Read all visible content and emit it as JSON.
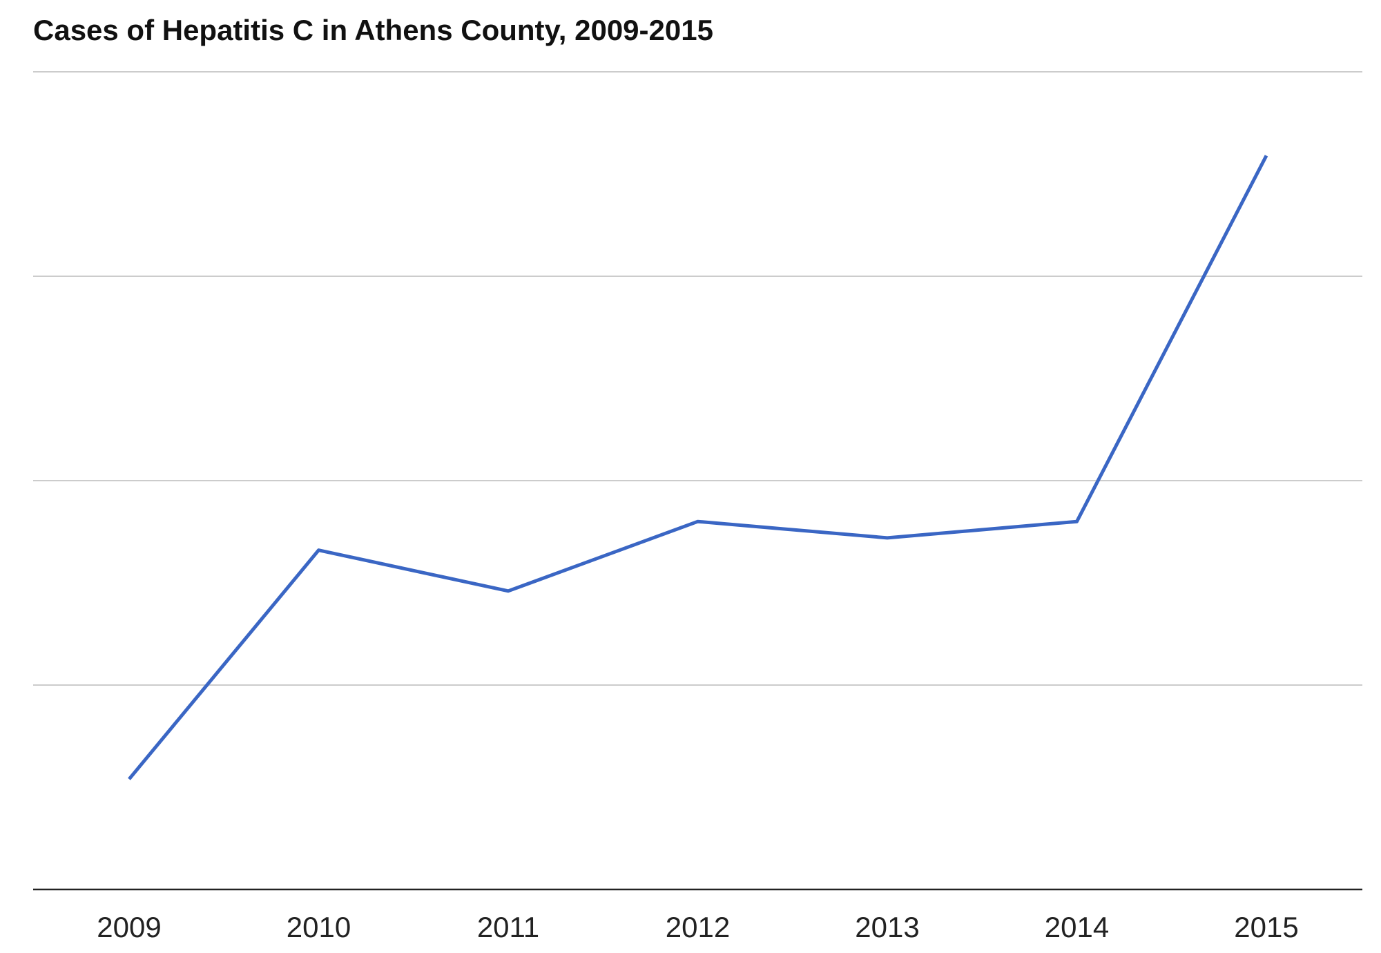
{
  "chart_data": {
    "type": "line",
    "title": "Cases of Hepatitis C in Athens County, 2009-2015",
    "xlabel": "",
    "ylabel": "",
    "categories": [
      "2009",
      "2010",
      "2011",
      "2012",
      "2013",
      "2014",
      "2015"
    ],
    "series": [
      {
        "values": [
          0.54,
          1.66,
          1.46,
          1.8,
          1.72,
          1.8,
          3.59
        ],
        "color": "#3a66c4"
      }
    ],
    "ylim": [
      0,
      4
    ],
    "y_tick_labels_shown": false,
    "grid": true,
    "gridline_color": "#cccccc",
    "legend": "none"
  }
}
